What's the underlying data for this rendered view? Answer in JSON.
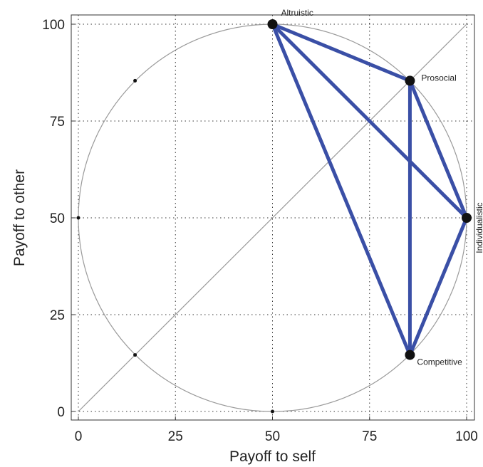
{
  "chart_data": {
    "type": "scatter",
    "xlabel": "Payoff to self",
    "ylabel": "Payoff to other",
    "xlim": [
      0,
      100
    ],
    "ylim": [
      0,
      100
    ],
    "xticks": [
      "0",
      "25",
      "50",
      "75",
      "100"
    ],
    "yticks": [
      "0",
      "25",
      "50",
      "75",
      "100"
    ],
    "grid": true,
    "circle": {
      "center": [
        50,
        50
      ],
      "radius": 50
    },
    "diagonal": [
      [
        0,
        0
      ],
      [
        100,
        100
      ]
    ],
    "small_points": [
      {
        "x": 0,
        "y": 50
      },
      {
        "x": 50,
        "y": 0
      },
      {
        "x": 14.6,
        "y": 85.4
      },
      {
        "x": 14.6,
        "y": 14.6
      }
    ],
    "points": [
      {
        "name": "Altruistic",
        "x": 50,
        "y": 100
      },
      {
        "name": "Prosocial",
        "x": 85.4,
        "y": 85.4
      },
      {
        "name": "Individualistic",
        "x": 100,
        "y": 50
      },
      {
        "name": "Competitive",
        "x": 85.4,
        "y": 14.6
      }
    ],
    "edges": [
      [
        "Altruistic",
        "Prosocial"
      ],
      [
        "Altruistic",
        "Individualistic"
      ],
      [
        "Altruistic",
        "Competitive"
      ],
      [
        "Prosocial",
        "Individualistic"
      ],
      [
        "Prosocial",
        "Competitive"
      ],
      [
        "Individualistic",
        "Competitive"
      ]
    ],
    "colors": {
      "edge": "#3a4fa6",
      "circle": "#9a9a9a",
      "point": "#111111"
    }
  }
}
